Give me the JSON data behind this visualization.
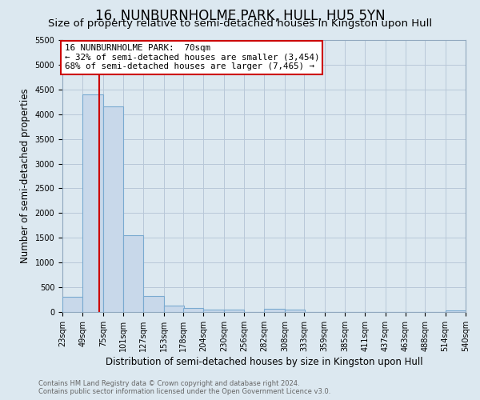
{
  "title": "16, NUNBURNHOLME PARK, HULL, HU5 5YN",
  "subtitle": "Size of property relative to semi-detached houses in Kingston upon Hull",
  "xlabel": "Distribution of semi-detached houses by size in Kingston upon Hull",
  "ylabel": "Number of semi-detached properties",
  "bins": [
    23,
    49,
    75,
    101,
    127,
    153,
    178,
    204,
    230,
    256,
    282,
    308,
    333,
    359,
    385,
    411,
    437,
    463,
    488,
    514,
    540
  ],
  "counts": [
    300,
    4400,
    4150,
    1550,
    320,
    130,
    75,
    50,
    50,
    0,
    60,
    50,
    0,
    0,
    0,
    0,
    0,
    0,
    0,
    30
  ],
  "bar_color": "#c8d8ea",
  "bar_edge_color": "#7aaad0",
  "property_size": 70,
  "pct_smaller": 32,
  "pct_larger": 68,
  "n_smaller": 3454,
  "n_larger": 7465,
  "vline_color": "#cc0000",
  "annotation_box_facecolor": "#ffffff",
  "annotation_box_edgecolor": "#cc0000",
  "ylim": [
    0,
    5500
  ],
  "yticks": [
    0,
    500,
    1000,
    1500,
    2000,
    2500,
    3000,
    3500,
    4000,
    4500,
    5000,
    5500
  ],
  "footer1": "Contains HM Land Registry data © Crown copyright and database right 2024.",
  "footer2": "Contains public sector information licensed under the Open Government Licence v3.0.",
  "title_fontsize": 12,
  "subtitle_fontsize": 9.5,
  "axis_label_fontsize": 8.5,
  "tick_fontsize": 7,
  "grid_color": "#b8c8d8",
  "background_color": "#dce8f0"
}
